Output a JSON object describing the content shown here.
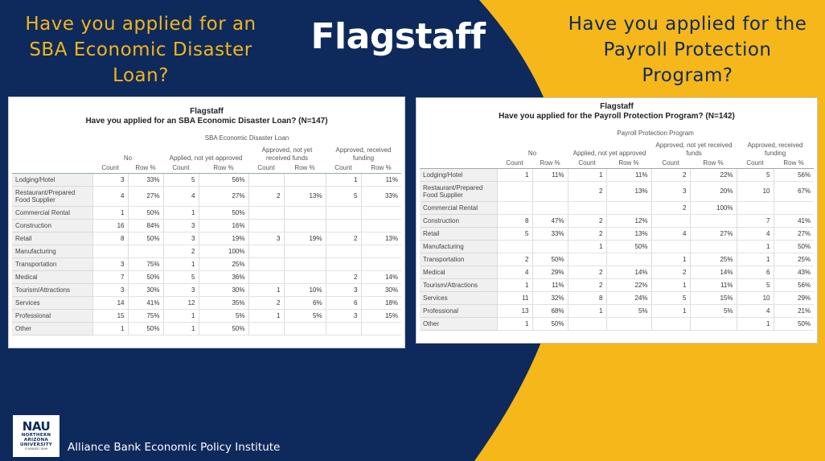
{
  "slide": {
    "title": "Flagstaff",
    "left_question": "Have you applied for an SBA Economic Disaster Loan?",
    "right_question": "Have you applied for the Payroll Protection Program?",
    "colors": {
      "navy": "#0e2a5c",
      "gold": "#f5b71a"
    }
  },
  "left_table": {
    "title_line1": "Flagstaff",
    "title_line2": "Have you applied for an SBA Economic Disaster Loan? (N=147)",
    "spanner": "SBA Economic Disaster Loan",
    "groups": [
      "No",
      "Applied, not yet approved",
      "Approved, not yet received funds",
      "Approved, received funding"
    ],
    "sub": [
      "Count",
      "Row %"
    ],
    "rows": [
      {
        "label": "Lodging/Hotel",
        "cells": [
          "3",
          "33%",
          "5",
          "56%",
          "",
          "",
          "1",
          "11%"
        ]
      },
      {
        "label": "Restaurant/Prepared Food Supplier",
        "cells": [
          "4",
          "27%",
          "4",
          "27%",
          "2",
          "13%",
          "5",
          "33%"
        ]
      },
      {
        "label": "Commercial Rental",
        "cells": [
          "1",
          "50%",
          "1",
          "50%",
          "",
          "",
          "",
          ""
        ]
      },
      {
        "label": "Construction",
        "cells": [
          "16",
          "84%",
          "3",
          "16%",
          "",
          "",
          "",
          ""
        ]
      },
      {
        "label": "Retail",
        "cells": [
          "8",
          "50%",
          "3",
          "19%",
          "3",
          "19%",
          "2",
          "13%"
        ]
      },
      {
        "label": "Manufacturing",
        "cells": [
          "",
          "",
          "2",
          "100%",
          "",
          "",
          "",
          ""
        ]
      },
      {
        "label": "Transportation",
        "cells": [
          "3",
          "75%",
          "1",
          "25%",
          "",
          "",
          "",
          ""
        ]
      },
      {
        "label": "Medical",
        "cells": [
          "7",
          "50%",
          "5",
          "36%",
          "",
          "",
          "2",
          "14%"
        ]
      },
      {
        "label": "Tourism/Attractions",
        "cells": [
          "3",
          "30%",
          "3",
          "30%",
          "1",
          "10%",
          "3",
          "30%"
        ]
      },
      {
        "label": "Services",
        "cells": [
          "14",
          "41%",
          "12",
          "35%",
          "2",
          "6%",
          "6",
          "18%"
        ]
      },
      {
        "label": "Professional",
        "cells": [
          "15",
          "75%",
          "1",
          "5%",
          "1",
          "5%",
          "3",
          "15%"
        ]
      },
      {
        "label": "Other",
        "cells": [
          "1",
          "50%",
          "1",
          "50%",
          "",
          "",
          "",
          ""
        ]
      }
    ]
  },
  "right_table": {
    "title_line1": "Flagstaff",
    "title_line2": "Have you applied for the Payroll Protection Program? (N=142)",
    "spanner": "Payroll Protection Program",
    "groups": [
      "No",
      "Applied, not yet approved",
      "Approved, not yet received funds",
      "Approved, received funding"
    ],
    "sub": [
      "Count",
      "Row %"
    ],
    "rows": [
      {
        "label": "Lodging/Hotel",
        "cells": [
          "1",
          "11%",
          "1",
          "11%",
          "2",
          "22%",
          "5",
          "56%"
        ]
      },
      {
        "label": "Restaurant/Prepared Food Supplier",
        "cells": [
          "",
          "",
          "2",
          "13%",
          "3",
          "20%",
          "10",
          "67%"
        ]
      },
      {
        "label": "Commercial Rental",
        "cells": [
          "",
          "",
          "",
          "",
          "2",
          "100%",
          "",
          ""
        ]
      },
      {
        "label": "Construction",
        "cells": [
          "8",
          "47%",
          "2",
          "12%",
          "",
          "",
          "7",
          "41%"
        ]
      },
      {
        "label": "Retail",
        "cells": [
          "5",
          "33%",
          "2",
          "13%",
          "4",
          "27%",
          "4",
          "27%"
        ]
      },
      {
        "label": "Manufacturing",
        "cells": [
          "",
          "",
          "1",
          "50%",
          "",
          "",
          "1",
          "50%"
        ]
      },
      {
        "label": "Transportation",
        "cells": [
          "2",
          "50%",
          "",
          "",
          "1",
          "25%",
          "1",
          "25%"
        ]
      },
      {
        "label": "Medical",
        "cells": [
          "4",
          "29%",
          "2",
          "14%",
          "2",
          "14%",
          "6",
          "43%"
        ]
      },
      {
        "label": "Tourism/Attractions",
        "cells": [
          "1",
          "11%",
          "2",
          "22%",
          "1",
          "11%",
          "5",
          "56%"
        ]
      },
      {
        "label": "Services",
        "cells": [
          "11",
          "32%",
          "8",
          "24%",
          "5",
          "15%",
          "10",
          "29%"
        ]
      },
      {
        "label": "Professional",
        "cells": [
          "13",
          "68%",
          "1",
          "5%",
          "1",
          "5%",
          "4",
          "21%"
        ]
      },
      {
        "label": "Other",
        "cells": [
          "1",
          "50%",
          "",
          "",
          "",
          "",
          "1",
          "50%"
        ]
      }
    ]
  },
  "footer": {
    "logo_main": "NAU",
    "logo_line1": "NORTHERN",
    "logo_line2": "ARIZONA",
    "logo_line3": "UNIVERSITY",
    "logo_line4": "FOUNDED 1899",
    "text": "Alliance Bank Economic Policy Institute"
  }
}
